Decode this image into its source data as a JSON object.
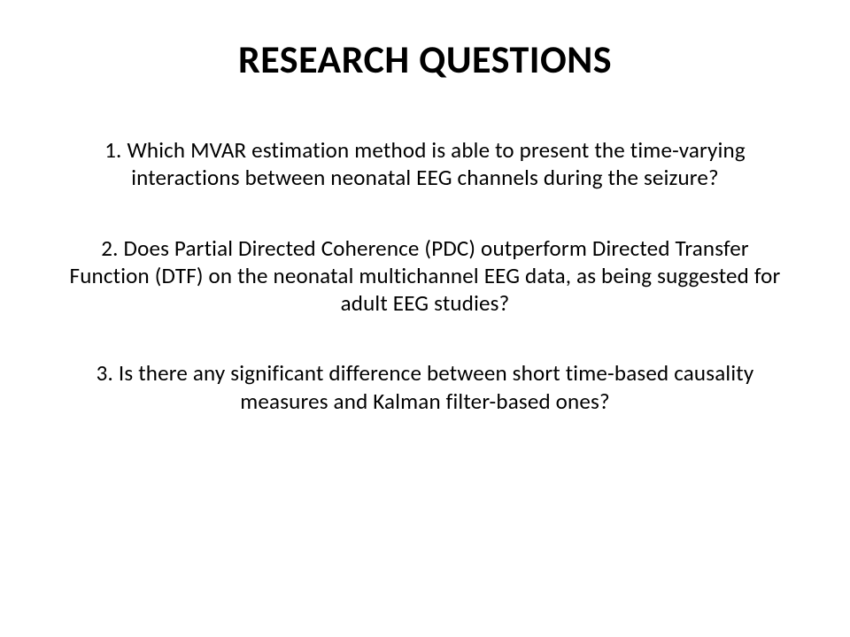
{
  "slide": {
    "title": "RESEARCH QUESTIONS",
    "title_fontsize": 44,
    "title_fontweight": 700,
    "body_fontsize": 25,
    "text_color": "#000000",
    "background_color": "#ffffff",
    "questions": [
      {
        "number": "1.",
        "text": "Which MVAR estimation method is able to present the time-varying interactions between neonatal EEG channels during the seizure?"
      },
      {
        "number": "2.",
        "text": "Does Partial Directed Coherence (PDC) outperform Directed Transfer Function (DTF) on the neonatal multichannel EEG data, as being suggested for adult EEG studies?"
      },
      {
        "number": "3.",
        "text": "Is there any significant difference between short time-based causality measures and Kalman filter-based ones?"
      }
    ]
  }
}
